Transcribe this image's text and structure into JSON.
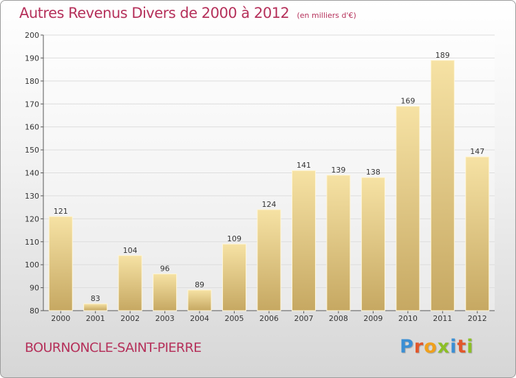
{
  "title": "Autres Revenus Divers de 2000 à 2012",
  "unit_note": "(en milliers d'€)",
  "place": "BOURNONCLE-SAINT-PIERRE",
  "brand": {
    "letters": [
      "P",
      "r",
      "o",
      "x",
      "i",
      "t",
      "i"
    ],
    "colors": [
      "#3b8fd4",
      "#e2572b",
      "#f0a01c",
      "#8cbf26",
      "#3b8fd4",
      "#e2572b",
      "#8cbf26"
    ]
  },
  "colors": {
    "title": "#b5305a",
    "bar_light": "#f6e2a4",
    "bar_dark": "#c6a862"
  },
  "chart_data": {
    "type": "bar",
    "categories": [
      "2000",
      "2001",
      "2002",
      "2003",
      "2004",
      "2005",
      "2006",
      "2007",
      "2008",
      "2009",
      "2010",
      "2011",
      "2012"
    ],
    "values": [
      121,
      83,
      104,
      96,
      89,
      109,
      124,
      141,
      139,
      138,
      169,
      189,
      147
    ],
    "ylim": [
      80,
      200
    ],
    "yticks": [
      80,
      90,
      100,
      110,
      120,
      130,
      140,
      150,
      160,
      170,
      180,
      190,
      200
    ],
    "grid": true,
    "xlabel": "",
    "ylabel": ""
  }
}
